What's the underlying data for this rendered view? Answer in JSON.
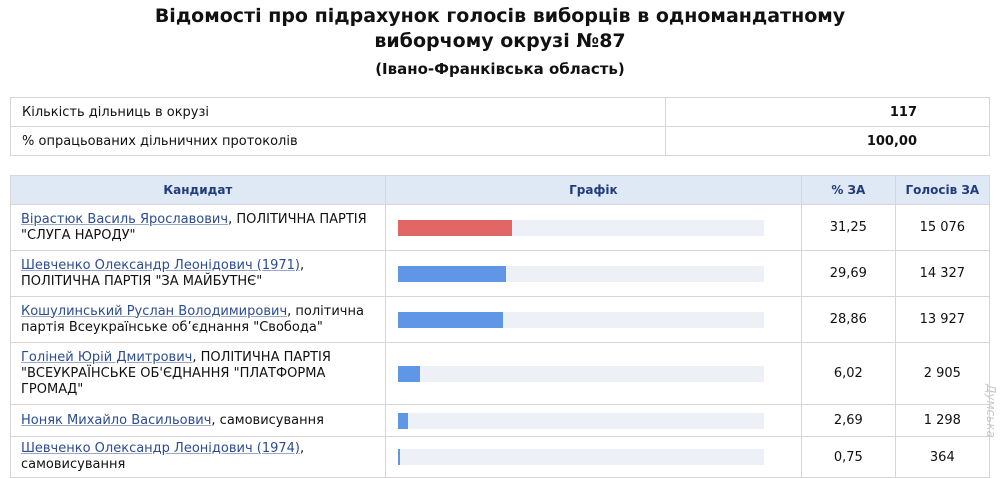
{
  "header": {
    "title_line1": "Відомості про підрахунок голосів виборців в одномандатному",
    "title_line2": "виборчому окрузі №87",
    "region": "(Івано-Франківська область)"
  },
  "summary": {
    "precincts_label": "Кількість дільниць в окрузі",
    "precincts_value": "117",
    "processed_label": "% опрацьованих дільничних протоколів",
    "processed_value": "100,00"
  },
  "table": {
    "headers": {
      "candidate": "Кандидат",
      "chart": "Графік",
      "percent": "% ЗА",
      "votes": "Голосів ЗА"
    },
    "rows": [
      {
        "name": "Вірастюк Василь Ярославович",
        "party": ", ПОЛІТИЧНА ПАРТІЯ \"СЛУГА НАРОДУ\"",
        "percent": "31,25",
        "votes": "15 076",
        "share": 31.25
      },
      {
        "name": "Шевченко Олександр Леонідович (1971)",
        "party": ", ПОЛІТИЧНА ПАРТІЯ \"ЗА МАЙБУТНЄ\"",
        "percent": "29,69",
        "votes": "14 327",
        "share": 29.69
      },
      {
        "name": "Кошулинський Руслан Володимирович",
        "party": ", політична партія Всеукраїнське об’єднання \"Свобода\"",
        "percent": "28,86",
        "votes": "13 927",
        "share": 28.86
      },
      {
        "name": "Голіней Юрій Дмитрович",
        "party": ", ПОЛІТИЧНА ПАРТІЯ \"ВСЕУКРАЇНСЬКЕ ОБ'ЄДНАННЯ \"ПЛАТФОРМА ГРОМАД\"",
        "percent": "6,02",
        "votes": "2 905",
        "share": 6.02
      },
      {
        "name": "Ноняк Михайло Васильович",
        "party": ", самовисування",
        "percent": "2,69",
        "votes": "1 298",
        "share": 2.69
      },
      {
        "name": "Шевченко Олександр Леонідович (1974)",
        "party": ", самовисування",
        "percent": "0,75",
        "votes": "364",
        "share": 0.75
      }
    ],
    "bar_scale_max": 100,
    "colors": {
      "leader": "#e26666",
      "others": "#5f97e6",
      "track": "#eef0f8",
      "header_bg": "#dfe8f5"
    }
  },
  "watermark": "Думська"
}
